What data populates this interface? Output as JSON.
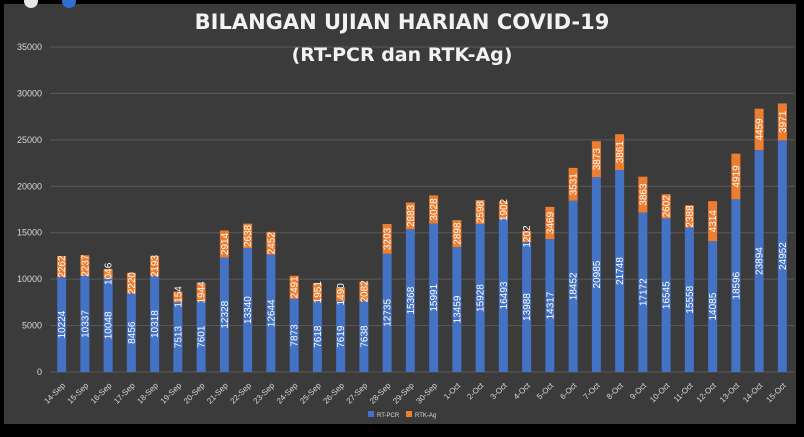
{
  "chart_data": {
    "type": "bar",
    "stacked": true,
    "title": "BILANGAN UJIAN HARIAN COVID-19",
    "subtitle": "(RT-PCR dan RTK-Ag)",
    "ylim": [
      0,
      35000
    ],
    "yticks": [
      0,
      5000,
      10000,
      15000,
      20000,
      25000,
      30000,
      35000
    ],
    "grid": true,
    "legend_position": "bottom",
    "categories": [
      "14-Sep",
      "15-Sep",
      "16-Sep",
      "17-Sep",
      "18-Sep",
      "19-Sep",
      "20-Sep",
      "21-Sep",
      "22-Sep",
      "23-Sep",
      "24-Sep",
      "25-Sep",
      "26-Sep",
      "27-Sep",
      "28-Sep",
      "29-Sep",
      "30-Sep",
      "1-Oct",
      "2-Oct",
      "3-Oct",
      "4-Oct",
      "5-Oct",
      "6-Oct",
      "7-Oct",
      "8-Oct",
      "9-Oct",
      "10-Oct",
      "11-Oct",
      "12-Oct",
      "13-Oct",
      "14-Oct",
      "15-Oct"
    ],
    "series": [
      {
        "name": "RT-PCR",
        "color": "#4472c4",
        "values": [
          10224,
          10337,
          10048,
          8456,
          10318,
          7513,
          7601,
          12328,
          13340,
          12644,
          7873,
          7618,
          7619,
          7638,
          12735,
          15368,
          15991,
          13459,
          15928,
          16493,
          13988,
          14317,
          18452,
          20985,
          21748,
          17172,
          16545,
          15558,
          14085,
          18596,
          23894,
          24952
        ]
      },
      {
        "name": "RTK-Ag",
        "color": "#ed7d31",
        "values": [
          2262,
          2237,
          1046,
          2220,
          2193,
          1154,
          1944,
          2914,
          2638,
          2452,
          2491,
          1951,
          1490,
          2082,
          3203,
          2883,
          3028,
          2898,
          2598,
          1902,
          1202,
          3469,
          3531,
          3873,
          3861,
          3863,
          2602,
          2388,
          4314,
          4919,
          4459,
          3971
        ]
      }
    ]
  },
  "overlay": {
    "colors": {
      "left_dot": "#e6e6e6",
      "right_dot": "#2f6fd6"
    }
  }
}
